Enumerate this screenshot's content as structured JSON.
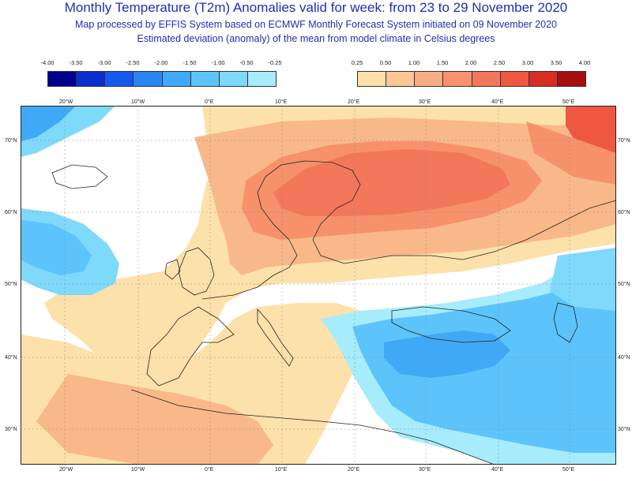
{
  "header": {
    "title": "Monthly Temperature (T2m) Anomalies valid for week: from 23 to 29 November 2020",
    "subtitle1": "Map processed by EFFIS System based on ECMWF Monthly Forecast System initiated on 09 November 2020",
    "subtitle2": "Estimated deviation (anomaly) of the mean from model climate in Celsius degrees"
  },
  "legend": {
    "cold": {
      "labels": [
        "-4.00",
        "-3.50",
        "-3.00",
        "-2.50",
        "-2.00",
        "-1.50",
        "-1.00",
        "-0.50",
        "-0.25"
      ],
      "colors": [
        "#00008f",
        "#0a2fd1",
        "#1659ee",
        "#2a86f5",
        "#3fa9f7",
        "#5cc4fa",
        "#7ed9fb",
        "#a6ecfc"
      ]
    },
    "warm": {
      "labels": [
        "0.25",
        "0.50",
        "1.00",
        "1.50",
        "2.00",
        "2.50",
        "3.00",
        "3.50",
        "4.00"
      ],
      "colors": [
        "#fde1aa",
        "#fbc796",
        "#f8ad82",
        "#f6926d",
        "#f3775a",
        "#ef5740",
        "#d72d22",
        "#a50f10"
      ]
    }
  },
  "axes": {
    "lon_labels": [
      "20°W",
      "10°W",
      "0°E",
      "10°E",
      "20°E",
      "30°E",
      "40°E",
      "50°E"
    ],
    "lat_labels": [
      "70°N",
      "60°N",
      "50°N",
      "40°N",
      "30°N"
    ]
  }
}
